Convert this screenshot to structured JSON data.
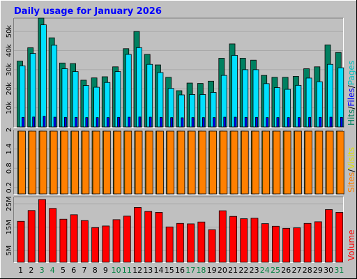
{
  "colors": {
    "background": "#c0c0c0",
    "plot_bg": "#c0c0c0",
    "grid": "#a8a8a8",
    "title": "#0000ff",
    "hits": "#008060",
    "files": "#00e0ff",
    "pages": "#0000ff",
    "visits": "#ff8000",
    "sites": "#ffff00",
    "volume": "#ff0000",
    "weekend_label": "#008040",
    "weekday_label": "#000000"
  },
  "chart_data": [
    {
      "type": "bar",
      "title": "Daily usage for January 2026",
      "legend": [
        {
          "name": "Pages",
          "color": "#00c0c0"
        },
        {
          "name": "Files",
          "color": "#0000ff"
        },
        {
          "name": "Hits",
          "color": "#008060"
        }
      ],
      "legend_separator": "/",
      "ylim": [
        0,
        57000
      ],
      "y_ticks": [
        {
          "value": 10000,
          "label": "10k"
        },
        {
          "value": 20000,
          "label": "20k"
        },
        {
          "value": 30000,
          "label": "30k"
        },
        {
          "value": 40000,
          "label": "40k"
        },
        {
          "value": 50000,
          "label": "50k"
        }
      ],
      "categories": [
        "1",
        "2",
        "3",
        "4",
        "5",
        "6",
        "7",
        "8",
        "9",
        "10",
        "11",
        "12",
        "13",
        "14",
        "15",
        "16",
        "17",
        "18",
        "19",
        "20",
        "21",
        "22",
        "23",
        "24",
        "25",
        "26",
        "27",
        "28",
        "29",
        "30",
        "31"
      ],
      "weekend_days": [
        "3",
        "4",
        "10",
        "11",
        "17",
        "18",
        "24",
        "25",
        "31"
      ],
      "series": [
        {
          "name": "Hits",
          "values": [
            34500,
            41500,
            57500,
            46700,
            33500,
            33200,
            24500,
            25700,
            26300,
            31500,
            41000,
            50000,
            38000,
            32500,
            26000,
            19000,
            23000,
            22800,
            24000,
            36000,
            43500,
            36000,
            35000,
            27000,
            26000,
            26000,
            26500,
            30500,
            31500,
            43000,
            39000
          ]
        },
        {
          "name": "Files",
          "values": [
            32000,
            38500,
            53500,
            42800,
            30500,
            29000,
            21700,
            20800,
            23300,
            29000,
            38000,
            41500,
            32800,
            28500,
            20200,
            16800,
            17000,
            17000,
            18100,
            27000,
            37500,
            30000,
            30000,
            22700,
            20600,
            19700,
            21800,
            25600,
            23700,
            32800,
            31000
          ]
        },
        {
          "name": "Pages",
          "values": [
            5000,
            5200,
            5600,
            5100,
            5000,
            5000,
            4900,
            4900,
            4900,
            5000,
            5100,
            5200,
            5100,
            5000,
            4900,
            4800,
            4900,
            4900,
            4900,
            5100,
            5100,
            5000,
            5000,
            4900,
            4900,
            4900,
            4900,
            5000,
            5000,
            5100,
            5000
          ]
        }
      ]
    },
    {
      "type": "bar",
      "legend": [
        {
          "name": "Visits",
          "color": "#e0e000"
        },
        {
          "name": "Sites",
          "color": "#ff8000"
        }
      ],
      "legend_separator": "/",
      "ylim": [
        0,
        2
      ],
      "y_ticks": [
        {
          "value": 0.2,
          "label": "0.2"
        },
        {
          "value": 0.8,
          "label": "0.8"
        },
        {
          "value": 1.4,
          "label": "1.4"
        },
        {
          "value": 2,
          "label": "2"
        }
      ],
      "series": [
        {
          "name": "Visits",
          "values": [
            2,
            2,
            2,
            2,
            2,
            2,
            2,
            2,
            2,
            2,
            2,
            2,
            2,
            2,
            2,
            2,
            2,
            2,
            2,
            2,
            2,
            2,
            2,
            2,
            2,
            2,
            2,
            2,
            2,
            2,
            2
          ]
        },
        {
          "name": "Sites",
          "values": [
            2,
            2,
            2,
            2,
            2,
            2,
            2,
            2,
            2,
            2,
            2,
            2,
            2,
            2,
            2,
            2,
            2,
            2,
            2,
            2,
            2,
            2,
            2,
            2,
            2,
            2,
            2,
            2,
            2,
            2,
            2
          ]
        }
      ]
    },
    {
      "type": "bar",
      "legend": [
        {
          "name": "Volume",
          "color": "#ff0000"
        }
      ],
      "ylim": [
        0,
        28000000
      ],
      "y_ticks": [
        {
          "value": 5000000,
          "label": "5M"
        },
        {
          "value": 15000000,
          "label": "15M"
        },
        {
          "value": 25000000,
          "label": "25M"
        }
      ],
      "series": [
        {
          "name": "Volume",
          "values": [
            17500000,
            22100000,
            26800000,
            23000000,
            18400000,
            20300000,
            17800000,
            14800000,
            15500000,
            18200000,
            19700000,
            23400000,
            21700000,
            21300000,
            15100000,
            16600000,
            16400000,
            17200000,
            13900000,
            22000000,
            19600000,
            18600000,
            18800000,
            16500000,
            15400000,
            14500000,
            14700000,
            16600000,
            17300000,
            22500000,
            21300000
          ]
        }
      ]
    }
  ]
}
